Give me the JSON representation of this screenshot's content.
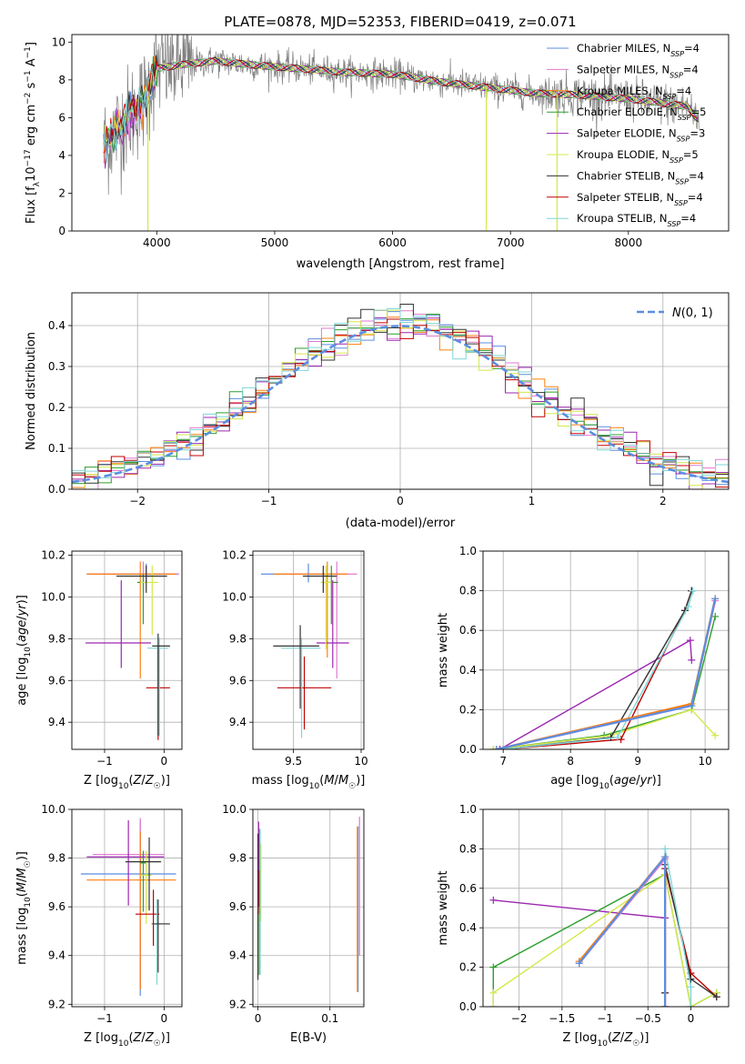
{
  "title": "PLATE=0878, MJD=52353, FIBERID=0419, z=0.071",
  "colors": {
    "chabrier_miles": "#5b8ee0",
    "salpeter_miles": "#e07ad0",
    "kroupa_miles": "#ff7f0e",
    "chabrier_elodie": "#2ca02c",
    "salpeter_elodie": "#9c27b0",
    "kroupa_elodie": "#d4e84a",
    "chabrier_stelib": "#333333",
    "salpeter_stelib": "#c00000",
    "kroupa_stelib": "#7fd6d6",
    "data": "#808080",
    "normal": "#5b8ee0"
  },
  "legend": [
    {
      "base": "Chabrier MILES, N",
      "sub": "SSP",
      "tail": "=4",
      "color_key": "chabrier_miles"
    },
    {
      "base": "Salpeter MILES, N",
      "sub": "SSP",
      "tail": "=4",
      "color_key": "salpeter_miles"
    },
    {
      "base": "Kroupa MILES, N",
      "sub": "SSP",
      "tail": "=4",
      "color_key": "kroupa_miles"
    },
    {
      "base": "Chabrier ELODIE, N",
      "sub": "SSP",
      "tail": "=5",
      "color_key": "chabrier_elodie"
    },
    {
      "base": "Salpeter ELODIE, N",
      "sub": "SSP",
      "tail": "=3",
      "color_key": "salpeter_elodie"
    },
    {
      "base": "Kroupa ELODIE, N",
      "sub": "SSP",
      "tail": "=5",
      "color_key": "kroupa_elodie"
    },
    {
      "base": "Chabrier STELIB, N",
      "sub": "SSP",
      "tail": "=4",
      "color_key": "chabrier_stelib"
    },
    {
      "base": "Salpeter STELIB, N",
      "sub": "SSP",
      "tail": "=4",
      "color_key": "salpeter_stelib"
    },
    {
      "base": "Kroupa STELIB, N",
      "sub": "SSP",
      "tail": "=4",
      "color_key": "kroupa_stelib"
    }
  ],
  "chart_data": [
    {
      "id": "spectrum",
      "type": "line",
      "xlabel": "wavelength [Angstrom, rest frame]",
      "ylabel": "Flux [f_λ 10^-17 erg cm^-2 s^-1 A^-1]",
      "xlim": [
        3280,
        8850
      ],
      "ylim": [
        0,
        10.4
      ],
      "xticks": [
        4000,
        5000,
        6000,
        7000,
        8000
      ],
      "yticks": [
        0,
        2,
        4,
        6,
        8,
        10
      ],
      "grid": false,
      "legend_position": "right",
      "continuum": [
        [
          3550,
          4.5
        ],
        [
          3700,
          5.6
        ],
        [
          3900,
          7.0
        ],
        [
          4000,
          8.6
        ],
        [
          4200,
          8.8
        ],
        [
          4500,
          9.0
        ],
        [
          4800,
          8.8
        ],
        [
          5200,
          8.6
        ],
        [
          5600,
          8.4
        ],
        [
          6000,
          8.3
        ],
        [
          6400,
          7.9
        ],
        [
          6800,
          7.6
        ],
        [
          7200,
          7.3
        ],
        [
          7600,
          7.2
        ],
        [
          8000,
          7.0
        ],
        [
          8500,
          6.6
        ],
        [
          8600,
          5.8
        ]
      ],
      "deep_lines": [
        [
          3925,
          0
        ],
        [
          6795,
          0
        ],
        [
          7395,
          0
        ]
      ]
    },
    {
      "id": "residuals",
      "type": "histogram",
      "xlabel": "(data-model)/error",
      "ylabel": "Normed distribution",
      "xlim": [
        -2.5,
        2.5
      ],
      "ylim": [
        0,
        0.48
      ],
      "xticks": [
        -2,
        -1,
        0,
        1,
        2
      ],
      "yticks": [
        0.0,
        0.1,
        0.2,
        0.3,
        0.4
      ],
      "grid": true,
      "legend": {
        "label": "N(0,1)",
        "position": "top-right"
      },
      "bin_width": 0.1
    },
    {
      "id": "age-vs-z",
      "type": "errorbar",
      "xlabel": "Z [log10(Z/Z☉)]",
      "ylabel": "age [log10(age/yr)]",
      "xlim": [
        -1.55,
        0.3
      ],
      "ylim": [
        9.27,
        10.22
      ],
      "xticks": [
        -1,
        0
      ],
      "yticks": [
        9.4,
        9.6,
        9.8,
        10.0,
        10.2
      ],
      "grid": true,
      "points": [
        {
          "c": "chabrier_miles",
          "x": -0.3,
          "xl": 1.0,
          "xh": 0.55,
          "y": 10.11,
          "yl": 0.04,
          "yh": 0.05
        },
        {
          "c": "salpeter_miles",
          "x": -0.35,
          "xl": 0.9,
          "xh": 0.6,
          "y": 10.11,
          "yl": 0.05,
          "yh": 0.06
        },
        {
          "c": "kroupa_miles",
          "x": -0.4,
          "xl": 0.9,
          "xh": 0.6,
          "y": 10.11,
          "yl": 0.5,
          "yh": 0.06
        },
        {
          "c": "chabrier_elodie",
          "x": -0.35,
          "xl": 0.1,
          "xh": 0.05,
          "y": 10.07,
          "yl": 0.2,
          "yh": 0.04
        },
        {
          "c": "salpeter_elodie",
          "x": -0.72,
          "xl": 0.6,
          "xh": 0.5,
          "y": 9.78,
          "yl": 0.12,
          "yh": 0.3
        },
        {
          "c": "kroupa_elodie",
          "x": -0.2,
          "xl": 0.2,
          "xh": 0.1,
          "y": 10.07,
          "yl": 0.25,
          "yh": 0.08
        },
        {
          "c": "chabrier_stelib",
          "x": -0.3,
          "xl": 0.5,
          "xh": 0.35,
          "y": 10.1,
          "yl": 0.08,
          "yh": 0.05
        },
        {
          "c": "salpeter_stelib",
          "x": -0.1,
          "xl": 0.2,
          "xh": 0.2,
          "y": 9.565,
          "yl": 0.25,
          "yh": 0.2
        },
        {
          "c": "kroupa_stelib",
          "x": -0.08,
          "xl": 0.2,
          "xh": 0.15,
          "y": 9.755,
          "yl": 0.42,
          "yh": 0.05
        },
        {
          "c": "chabrier_stelib",
          "x": -0.1,
          "xl": 0.1,
          "xh": 0.2,
          "y": 9.765,
          "yl": 0.43,
          "yh": 0.06
        }
      ]
    },
    {
      "id": "age-vs-mass",
      "type": "errorbar",
      "xlabel": "mass [log10(M/M☉)]",
      "ylabel": "",
      "xlim": [
        9.2,
        10.02
      ],
      "ylim": [
        9.27,
        10.22
      ],
      "xticks": [
        9.5,
        10.0
      ],
      "yticks": [
        9.4,
        9.6,
        9.8,
        10.0,
        10.2
      ],
      "grid": true,
      "points": [
        {
          "c": "chabrier_miles",
          "x": 9.61,
          "xl": 0.35,
          "xh": 0.2,
          "y": 10.11,
          "yl": 0.04,
          "yh": 0.05
        },
        {
          "c": "salpeter_miles",
          "x": 9.82,
          "xl": 0.4,
          "xh": 0.15,
          "y": 10.11,
          "yl": 0.5,
          "yh": 0.06
        },
        {
          "c": "kroupa_miles",
          "x": 9.75,
          "xl": 0.4,
          "xh": 0.15,
          "y": 10.11,
          "yl": 0.4,
          "yh": 0.06
        },
        {
          "c": "chabrier_elodie",
          "x": 9.78,
          "xl": 0.05,
          "xh": 0.05,
          "y": 10.07,
          "yl": 0.2,
          "yh": 0.08
        },
        {
          "c": "salpeter_elodie",
          "x": 9.79,
          "xl": 0.12,
          "xh": 0.12,
          "y": 9.78,
          "yl": 0.12,
          "yh": 0.3
        },
        {
          "c": "kroupa_elodie",
          "x": 9.74,
          "xl": 0.04,
          "xh": 0.04,
          "y": 10.07,
          "yl": 0.32,
          "yh": 0.08
        },
        {
          "c": "chabrier_stelib",
          "x": 9.72,
          "xl": 0.15,
          "xh": 0.1,
          "y": 10.1,
          "yl": 0.08,
          "yh": 0.05
        },
        {
          "c": "salpeter_stelib",
          "x": 9.58,
          "xl": 0.2,
          "xh": 0.2,
          "y": 9.565,
          "yl": 0.2,
          "yh": 0.15
        },
        {
          "c": "kroupa_stelib",
          "x": 9.56,
          "xl": 0.15,
          "xh": 0.14,
          "y": 9.755,
          "yl": 0.43,
          "yh": 0.05
        },
        {
          "c": "chabrier_stelib",
          "x": 9.55,
          "xl": 0.2,
          "xh": 0.14,
          "y": 9.765,
          "yl": 0.3,
          "yh": 0.1
        }
      ]
    },
    {
      "id": "weight-vs-age",
      "type": "line",
      "xlabel": "age [log10(age/yr)]",
      "ylabel": "mass weight",
      "xlim": [
        6.7,
        10.35
      ],
      "ylim": [
        0,
        1.0
      ],
      "xticks": [
        7,
        8,
        9,
        10
      ],
      "yticks": [
        0.0,
        0.2,
        0.4,
        0.6,
        0.8,
        1.0
      ],
      "grid": true,
      "series": [
        {
          "c": "chabrier_elodie",
          "x": [
            6.85,
            8.5,
            9.8,
            10.15
          ],
          "y": [
            0.0,
            0.07,
            0.2,
            0.67
          ]
        },
        {
          "c": "kroupa_elodie",
          "x": [
            6.85,
            8.6,
            9.8,
            10.15
          ],
          "y": [
            0.0,
            0.07,
            0.2,
            0.07
          ]
        },
        {
          "c": "salpeter_elodie",
          "x": [
            6.95,
            9.78,
            9.8
          ],
          "y": [
            0.0,
            0.55,
            0.45
          ]
        },
        {
          "c": "salpeter_stelib",
          "x": [
            7.0,
            8.75,
            9.7,
            9.8
          ],
          "y": [
            0.0,
            0.05,
            0.7,
            0.8
          ]
        },
        {
          "c": "chabrier_stelib",
          "x": [
            7.0,
            8.6,
            9.7,
            9.8
          ],
          "y": [
            0.0,
            0.06,
            0.7,
            0.8
          ]
        },
        {
          "c": "kroupa_stelib",
          "x": [
            7.0,
            8.7,
            9.75,
            9.82
          ],
          "y": [
            0.0,
            0.06,
            0.72,
            0.8
          ]
        },
        {
          "c": "kroupa_miles",
          "x": [
            6.9,
            9.8,
            10.15
          ],
          "y": [
            0.0,
            0.23,
            0.76
          ]
        },
        {
          "c": "salpeter_miles",
          "x": [
            6.9,
            9.8,
            10.15
          ],
          "y": [
            0.0,
            0.22,
            0.75
          ]
        },
        {
          "c": "chabrier_miles",
          "x": [
            6.9,
            9.8,
            10.15
          ],
          "y": [
            0.0,
            0.22,
            0.76
          ]
        }
      ]
    },
    {
      "id": "mass-vs-z",
      "type": "errorbar",
      "xlabel": "Z [log10(Z/Z☉)]",
      "ylabel": "mass [log10(M/M☉)]",
      "xlim": [
        -1.55,
        0.3
      ],
      "ylim": [
        9.19,
        10.0
      ],
      "xticks": [
        -1,
        0
      ],
      "yticks": [
        9.2,
        9.4,
        9.6,
        9.8,
        10.0
      ],
      "grid": true,
      "points": [
        {
          "c": "chabrier_miles",
          "x": -0.4,
          "xl": 1.0,
          "xh": 0.6,
          "y": 9.735,
          "yl": 0.5,
          "yh": 0.22
        },
        {
          "c": "salpeter_miles",
          "x": -0.4,
          "xl": 0.8,
          "xh": 0.4,
          "y": 9.815,
          "yl": 0.55,
          "yh": 0.15
        },
        {
          "c": "kroupa_miles",
          "x": -0.4,
          "xl": 0.9,
          "xh": 0.6,
          "y": 9.71,
          "yl": 0.45,
          "yh": 0.2
        },
        {
          "c": "chabrier_elodie",
          "x": -0.35,
          "xl": 0.05,
          "xh": 0.05,
          "y": 9.78,
          "yl": 0.2,
          "yh": 0.05
        },
        {
          "c": "salpeter_elodie",
          "x": -0.6,
          "xl": 0.7,
          "xh": 0.6,
          "y": 9.805,
          "yl": 0.2,
          "yh": 0.15
        },
        {
          "c": "kroupa_elodie",
          "x": -0.3,
          "xl": 0.1,
          "xh": 0.1,
          "y": 9.73,
          "yl": 0.2,
          "yh": 0.1
        },
        {
          "c": "chabrier_stelib",
          "x": -0.25,
          "xl": 0.4,
          "xh": 0.2,
          "y": 9.785,
          "yl": 0.2,
          "yh": 0.1
        },
        {
          "c": "salpeter_stelib",
          "x": -0.18,
          "xl": 0.3,
          "xh": 0.1,
          "y": 9.57,
          "yl": 0.13,
          "yh": 0.1
        },
        {
          "c": "kroupa_stelib",
          "x": -0.12,
          "xl": 0.1,
          "xh": 0.2,
          "y": 9.53,
          "yl": 0.25,
          "yh": 0.1
        },
        {
          "c": "chabrier_stelib",
          "x": -0.1,
          "xl": 0.1,
          "xh": 0.2,
          "y": 9.53,
          "yl": 0.2,
          "yh": 0.1
        }
      ]
    },
    {
      "id": "mass-vs-ebv",
      "type": "errorbar",
      "xlabel": "E(B-V)",
      "ylabel": "",
      "xlim": [
        -0.007,
        0.147
      ],
      "ylim": [
        9.19,
        10.0
      ],
      "xticks": [
        0.0,
        0.1
      ],
      "yticks": [
        9.2,
        9.4,
        9.6,
        9.8,
        10.0
      ],
      "grid": true,
      "points": [
        {
          "c": "chabrier_miles",
          "x": 0.139,
          "xl": 0.0,
          "xh": 0.0,
          "y": 9.6,
          "yl": 0.35,
          "yh": 0.33
        },
        {
          "c": "salpeter_miles",
          "x": 0.141,
          "xl": 0.0,
          "xh": 0.0,
          "y": 9.7,
          "yl": 0.3,
          "yh": 0.27
        },
        {
          "c": "kroupa_miles",
          "x": 0.138,
          "xl": 0.0,
          "xh": 0.0,
          "y": 9.6,
          "yl": 0.35,
          "yh": 0.33
        },
        {
          "c": "chabrier_elodie",
          "x": 0.002,
          "xl": 0.0,
          "xh": 0.0,
          "y": 9.62,
          "yl": 0.3,
          "yh": 0.3
        },
        {
          "c": "salpeter_elodie",
          "x": 0.001,
          "xl": 0.0,
          "xh": 0.0,
          "y": 9.8,
          "yl": 0.2,
          "yh": 0.15
        },
        {
          "c": "kroupa_elodie",
          "x": 0.004,
          "xl": 0.0,
          "xh": 0.0,
          "y": 9.66,
          "yl": 0.12,
          "yh": 0.2
        },
        {
          "c": "chabrier_stelib",
          "x": 0.0,
          "xl": 0.0,
          "xh": 0.0,
          "y": 9.6,
          "yl": 0.3,
          "yh": 0.3
        },
        {
          "c": "salpeter_stelib",
          "x": 0.002,
          "xl": 0.0,
          "xh": 0.0,
          "y": 9.65,
          "yl": 0.08,
          "yh": 0.1
        },
        {
          "c": "kroupa_stelib",
          "x": 0.003,
          "xl": 0.0,
          "xh": 0.0,
          "y": 9.62,
          "yl": 0.3,
          "yh": 0.3
        }
      ]
    },
    {
      "id": "weight-vs-z",
      "type": "line",
      "xlabel": "Z [log10(Z/Z☉)]",
      "ylabel": "mass weight",
      "xlim": [
        -2.42,
        0.44
      ],
      "ylim": [
        0,
        1.0
      ],
      "xticks": [
        -2.0,
        -1.5,
        -1.0,
        -0.5,
        0.0
      ],
      "yticks": [
        0.0,
        0.2,
        0.4,
        0.6,
        0.8,
        1.0
      ],
      "grid": true,
      "series": [
        {
          "c": "salpeter_elodie",
          "x": [
            -2.3,
            -0.3,
            -0.3
          ],
          "y": [
            0.54,
            0.45,
            0.0
          ]
        },
        {
          "c": "chabrier_elodie",
          "x": [
            -2.3,
            -2.3,
            -0.3,
            0.0,
            0.3
          ],
          "y": [
            0.0,
            0.2,
            0.67,
            0.0,
            0.07
          ]
        },
        {
          "c": "kroupa_elodie",
          "x": [
            -2.3,
            -2.3,
            -0.3,
            0.0,
            0.3
          ],
          "y": [
            0.0,
            0.07,
            0.67,
            0.0,
            0.07
          ]
        },
        {
          "c": "salpeter_stelib",
          "x": [
            -0.3,
            -0.3,
            0.0,
            0.3
          ],
          "y": [
            0.07,
            0.7,
            0.17,
            0.05
          ]
        },
        {
          "c": "chabrier_stelib",
          "x": [
            -0.3,
            -0.3,
            0.0,
            0.3
          ],
          "y": [
            0.07,
            0.72,
            0.14,
            0.05
          ]
        },
        {
          "c": "kroupa_stelib",
          "x": [
            -0.3,
            -0.3,
            0.0,
            0.0
          ],
          "y": [
            0.0,
            0.8,
            0.1,
            0.0
          ]
        },
        {
          "c": "kroupa_miles",
          "x": [
            -1.3,
            -0.3,
            -0.3
          ],
          "y": [
            0.23,
            0.76,
            0.0
          ]
        },
        {
          "c": "salpeter_miles",
          "x": [
            -1.3,
            -0.3,
            -0.3
          ],
          "y": [
            0.22,
            0.75,
            0.0
          ]
        },
        {
          "c": "chabrier_miles",
          "x": [
            -1.3,
            -0.3,
            -0.3
          ],
          "y": [
            0.22,
            0.76,
            0.0
          ]
        }
      ]
    }
  ]
}
